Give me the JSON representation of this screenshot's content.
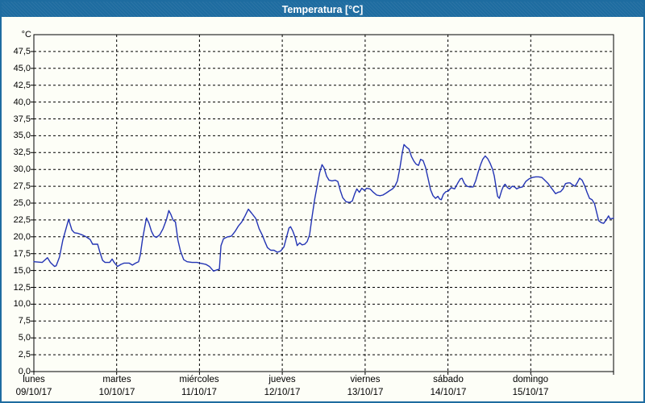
{
  "colors": {
    "titlebar_bg": "#1e6ca0",
    "window_border": "#1e6ca0",
    "page_bg": "#fdfef7",
    "grid": "#000000",
    "frame": "#000000",
    "line": "#2334b4",
    "title_text": "#ffffff",
    "label_text": "#000000"
  },
  "chart_data": {
    "type": "line",
    "title": "Temperatura [°C]",
    "y_axis": {
      "unit_label": "°C",
      "min": 0,
      "max": 50,
      "tick_step": 2.5,
      "tick_labels": [
        "0,0",
        "2,5",
        "5,0",
        "7,5",
        "10,0",
        "12,5",
        "15,0",
        "17,5",
        "20,0",
        "22,5",
        "25,0",
        "27,5",
        "30,0",
        "32,5",
        "35,0",
        "37,5",
        "40,0",
        "42,5",
        "45,0",
        "47,5"
      ]
    },
    "x_axis": {
      "days": [
        {
          "name": "lunes",
          "date": "09/10/17"
        },
        {
          "name": "martes",
          "date": "10/10/17"
        },
        {
          "name": "miércoles",
          "date": "11/10/17"
        },
        {
          "name": "jueves",
          "date": "12/10/17"
        },
        {
          "name": "viernes",
          "date": "13/10/17"
        },
        {
          "name": "sábado",
          "date": "14/10/17"
        },
        {
          "name": "domingo",
          "date": "15/10/17"
        }
      ]
    },
    "grid": {
      "horizontal": "dashed",
      "vertical": "dashed",
      "legend": "none"
    },
    "series": [
      {
        "name": "Temperatura",
        "color": "#2334b4",
        "points": [
          [
            0.0,
            16.3
          ],
          [
            0.1,
            16.2
          ],
          [
            0.165,
            16.9
          ],
          [
            0.2,
            16.2
          ],
          [
            0.25,
            15.6
          ],
          [
            0.27,
            15.7
          ],
          [
            0.31,
            17.0
          ],
          [
            0.35,
            19.5
          ],
          [
            0.39,
            21.3
          ],
          [
            0.42,
            22.6
          ],
          [
            0.46,
            21.0
          ],
          [
            0.49,
            20.6
          ],
          [
            0.535,
            20.5
          ],
          [
            0.58,
            20.3
          ],
          [
            0.63,
            20.0
          ],
          [
            0.68,
            19.6
          ],
          [
            0.71,
            18.9
          ],
          [
            0.77,
            18.9
          ],
          [
            0.8,
            17.6
          ],
          [
            0.83,
            16.5
          ],
          [
            0.86,
            16.2
          ],
          [
            0.915,
            16.2
          ],
          [
            0.945,
            16.7
          ],
          [
            0.97,
            16.2
          ],
          [
            1.01,
            15.6
          ],
          [
            1.05,
            15.9
          ],
          [
            1.09,
            16.1
          ],
          [
            1.15,
            16.1
          ],
          [
            1.19,
            15.8
          ],
          [
            1.23,
            16.1
          ],
          [
            1.265,
            16.3
          ],
          [
            1.285,
            17.3
          ],
          [
            1.31,
            19.5
          ],
          [
            1.34,
            21.5
          ],
          [
            1.36,
            22.8
          ],
          [
            1.39,
            22.0
          ],
          [
            1.42,
            20.8
          ],
          [
            1.45,
            20.1
          ],
          [
            1.48,
            19.9
          ],
          [
            1.52,
            20.3
          ],
          [
            1.56,
            21.2
          ],
          [
            1.6,
            22.5
          ],
          [
            1.63,
            23.9
          ],
          [
            1.655,
            23.3
          ],
          [
            1.68,
            22.5
          ],
          [
            1.71,
            22.2
          ],
          [
            1.74,
            19.5
          ],
          [
            1.77,
            17.9
          ],
          [
            1.81,
            16.6
          ],
          [
            1.85,
            16.3
          ],
          [
            1.91,
            16.2
          ],
          [
            1.97,
            16.2
          ],
          [
            2.005,
            16.1
          ],
          [
            2.04,
            16.0
          ],
          [
            2.08,
            15.9
          ],
          [
            2.12,
            15.6
          ],
          [
            2.17,
            14.9
          ],
          [
            2.21,
            15.1
          ],
          [
            2.24,
            15.2
          ],
          [
            2.26,
            18.7
          ],
          [
            2.29,
            19.7
          ],
          [
            2.34,
            20.0
          ],
          [
            2.385,
            20.1
          ],
          [
            2.43,
            20.8
          ],
          [
            2.47,
            21.6
          ],
          [
            2.51,
            22.2
          ],
          [
            2.55,
            23.1
          ],
          [
            2.59,
            24.1
          ],
          [
            2.63,
            23.5
          ],
          [
            2.68,
            22.7
          ],
          [
            2.72,
            21.2
          ],
          [
            2.76,
            20.2
          ],
          [
            2.785,
            19.4
          ],
          [
            2.82,
            18.4
          ],
          [
            2.86,
            18.0
          ],
          [
            2.9,
            18.0
          ],
          [
            2.94,
            17.7
          ],
          [
            2.98,
            17.9
          ],
          [
            3.02,
            18.5
          ],
          [
            3.05,
            19.9
          ],
          [
            3.08,
            21.3
          ],
          [
            3.1,
            21.5
          ],
          [
            3.125,
            20.9
          ],
          [
            3.155,
            19.9
          ],
          [
            3.18,
            18.7
          ],
          [
            3.21,
            19.1
          ],
          [
            3.24,
            18.8
          ],
          [
            3.27,
            18.9
          ],
          [
            3.3,
            19.3
          ],
          [
            3.33,
            20.3
          ],
          [
            3.36,
            23.0
          ],
          [
            3.39,
            25.5
          ],
          [
            3.42,
            27.5
          ],
          [
            3.45,
            29.5
          ],
          [
            3.48,
            30.7
          ],
          [
            3.505,
            30.2
          ],
          [
            3.535,
            29.0
          ],
          [
            3.565,
            28.4
          ],
          [
            3.6,
            28.3
          ],
          [
            3.64,
            28.4
          ],
          [
            3.67,
            28.2
          ],
          [
            3.7,
            26.9
          ],
          [
            3.73,
            25.8
          ],
          [
            3.77,
            25.2
          ],
          [
            3.81,
            25.1
          ],
          [
            3.845,
            25.3
          ],
          [
            3.875,
            26.4
          ],
          [
            3.9,
            27.1
          ],
          [
            3.93,
            26.6
          ],
          [
            3.96,
            27.2
          ],
          [
            3.99,
            26.9
          ],
          [
            4.02,
            27.2
          ],
          [
            4.06,
            27.1
          ],
          [
            4.1,
            26.6
          ],
          [
            4.14,
            26.2
          ],
          [
            4.18,
            26.1
          ],
          [
            4.215,
            26.2
          ],
          [
            4.255,
            26.5
          ],
          [
            4.29,
            26.8
          ],
          [
            4.33,
            27.1
          ],
          [
            4.36,
            27.5
          ],
          [
            4.39,
            28.3
          ],
          [
            4.42,
            30.2
          ],
          [
            4.45,
            32.6
          ],
          [
            4.47,
            33.7
          ],
          [
            4.5,
            33.3
          ],
          [
            4.53,
            33.0
          ],
          [
            4.56,
            31.9
          ],
          [
            4.59,
            31.2
          ],
          [
            4.615,
            30.8
          ],
          [
            4.645,
            30.6
          ],
          [
            4.67,
            31.5
          ],
          [
            4.7,
            31.3
          ],
          [
            4.73,
            30.3
          ],
          [
            4.76,
            28.7
          ],
          [
            4.79,
            27.0
          ],
          [
            4.82,
            26.1
          ],
          [
            4.85,
            25.7
          ],
          [
            4.88,
            26.0
          ],
          [
            4.9,
            25.6
          ],
          [
            4.92,
            25.5
          ],
          [
            4.945,
            26.3
          ],
          [
            4.975,
            26.7
          ],
          [
            5.005,
            26.8
          ],
          [
            5.04,
            27.3
          ],
          [
            5.08,
            27.1
          ],
          [
            5.12,
            28.0
          ],
          [
            5.15,
            28.6
          ],
          [
            5.17,
            28.7
          ],
          [
            5.2,
            27.9
          ],
          [
            5.23,
            27.5
          ],
          [
            5.265,
            27.4
          ],
          [
            5.305,
            27.4
          ],
          [
            5.335,
            28.3
          ],
          [
            5.365,
            29.6
          ],
          [
            5.395,
            30.7
          ],
          [
            5.42,
            31.5
          ],
          [
            5.45,
            32.0
          ],
          [
            5.48,
            31.6
          ],
          [
            5.51,
            30.9
          ],
          [
            5.54,
            30.0
          ],
          [
            5.56,
            29.0
          ],
          [
            5.58,
            27.5
          ],
          [
            5.6,
            26.0
          ],
          [
            5.62,
            25.7
          ],
          [
            5.65,
            26.9
          ],
          [
            5.67,
            27.5
          ],
          [
            5.69,
            27.8
          ],
          [
            5.72,
            27.3
          ],
          [
            5.745,
            27.1
          ],
          [
            5.775,
            27.5
          ],
          [
            5.805,
            27.4
          ],
          [
            5.83,
            27.1
          ],
          [
            5.86,
            27.3
          ],
          [
            5.9,
            27.4
          ],
          [
            5.94,
            28.2
          ],
          [
            5.98,
            28.6
          ],
          [
            6.02,
            28.8
          ],
          [
            6.06,
            28.9
          ],
          [
            6.095,
            28.9
          ],
          [
            6.135,
            28.8
          ],
          [
            6.17,
            28.4
          ],
          [
            6.21,
            27.9
          ],
          [
            6.24,
            27.4
          ],
          [
            6.27,
            26.9
          ],
          [
            6.3,
            26.4
          ],
          [
            6.33,
            26.6
          ],
          [
            6.36,
            26.7
          ],
          [
            6.39,
            27.1
          ],
          [
            6.42,
            27.9
          ],
          [
            6.45,
            28.0
          ],
          [
            6.475,
            28.0
          ],
          [
            6.505,
            27.7
          ],
          [
            6.535,
            27.5
          ],
          [
            6.565,
            28.1
          ],
          [
            6.59,
            28.7
          ],
          [
            6.62,
            28.4
          ],
          [
            6.65,
            27.6
          ],
          [
            6.68,
            26.6
          ],
          [
            6.71,
            25.7
          ],
          [
            6.74,
            25.5
          ],
          [
            6.77,
            24.9
          ],
          [
            6.8,
            23.4
          ],
          [
            6.82,
            22.4
          ],
          [
            6.85,
            22.1
          ],
          [
            6.88,
            22.0
          ],
          [
            6.91,
            22.5
          ],
          [
            6.94,
            23.1
          ],
          [
            6.955,
            22.7
          ],
          [
            6.985,
            22.7
          ],
          [
            7.0,
            22.8
          ]
        ]
      }
    ]
  }
}
